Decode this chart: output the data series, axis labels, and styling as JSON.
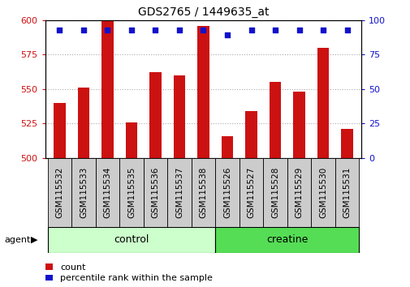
{
  "title": "GDS2765 / 1449635_at",
  "categories": [
    "GSM115532",
    "GSM115533",
    "GSM115534",
    "GSM115535",
    "GSM115536",
    "GSM115537",
    "GSM115538",
    "GSM115526",
    "GSM115527",
    "GSM115528",
    "GSM115529",
    "GSM115530",
    "GSM115531"
  ],
  "counts": [
    540,
    551,
    600,
    526,
    562,
    560,
    596,
    516,
    534,
    555,
    548,
    580,
    521
  ],
  "percentile_ranks": [
    93,
    93,
    93,
    93,
    93,
    93,
    93,
    89,
    93,
    93,
    93,
    93,
    93
  ],
  "groups": {
    "control_n": 7,
    "creatine_n": 6
  },
  "ylim_left": [
    500,
    600
  ],
  "ylim_right": [
    0,
    100
  ],
  "yticks_left": [
    500,
    525,
    550,
    575,
    600
  ],
  "yticks_right": [
    0,
    25,
    50,
    75,
    100
  ],
  "bar_color": "#cc1111",
  "dot_color": "#1111cc",
  "control_color": "#ccffcc",
  "creatine_color": "#55dd55",
  "tick_label_area_color": "#cccccc",
  "agent_label": "agent",
  "legend_count": "count",
  "legend_percentile": "percentile rank within the sample",
  "grid_color": "#aaaaaa",
  "bar_width": 0.5,
  "background_color": "#ffffff",
  "title_fontsize": 10,
  "tick_fontsize": 8,
  "label_fontsize": 7.5,
  "group_fontsize": 9
}
